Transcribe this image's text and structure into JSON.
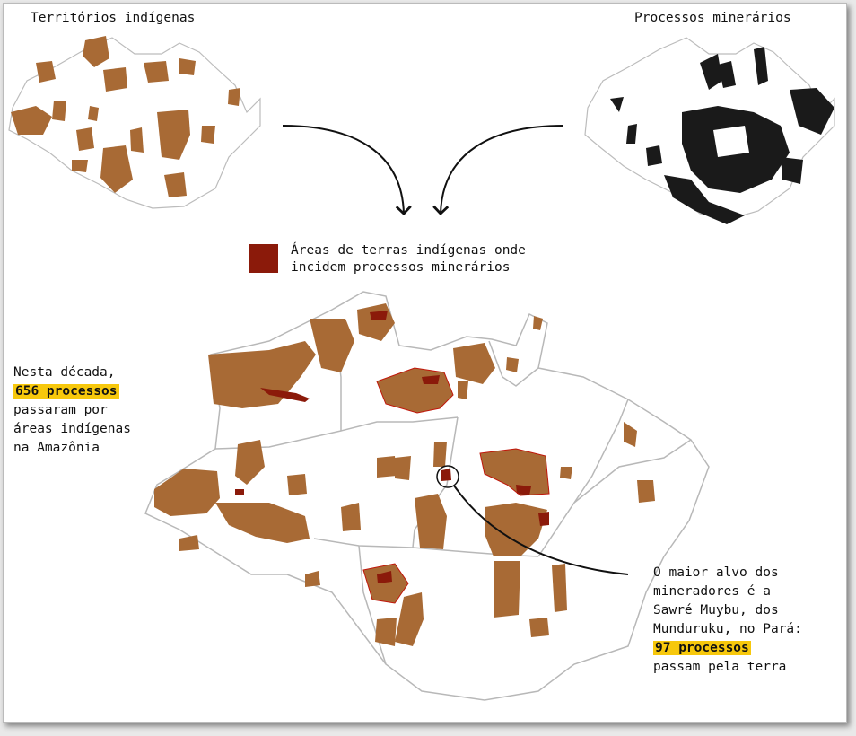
{
  "titles": {
    "indigenous": "Territórios indígenas",
    "mining": "Processos minerários"
  },
  "legend": {
    "line1": "Áreas de terras indígenas onde",
    "line2": "incidem processos minerários",
    "color": "#8b1a0a"
  },
  "note_left": {
    "line1": "Nesta década,",
    "highlight": "656 processos",
    "line3": "passaram por",
    "line4": "áreas indígenas",
    "line5": "na Amazônia"
  },
  "note_right": {
    "line1": "O maior alvo dos",
    "line2": "mineradores é a",
    "line3": "Sawré Muybu, dos",
    "line4": "Munduruku, no Pará:",
    "highlight": "97 processos",
    "line6": "passam pela terra"
  },
  "colors": {
    "territory": "#a86a35",
    "mining": "#1a1a1a",
    "overlap": "#8b1a0a",
    "highlight": "#f7c80c",
    "border": "#b8b8b8"
  }
}
